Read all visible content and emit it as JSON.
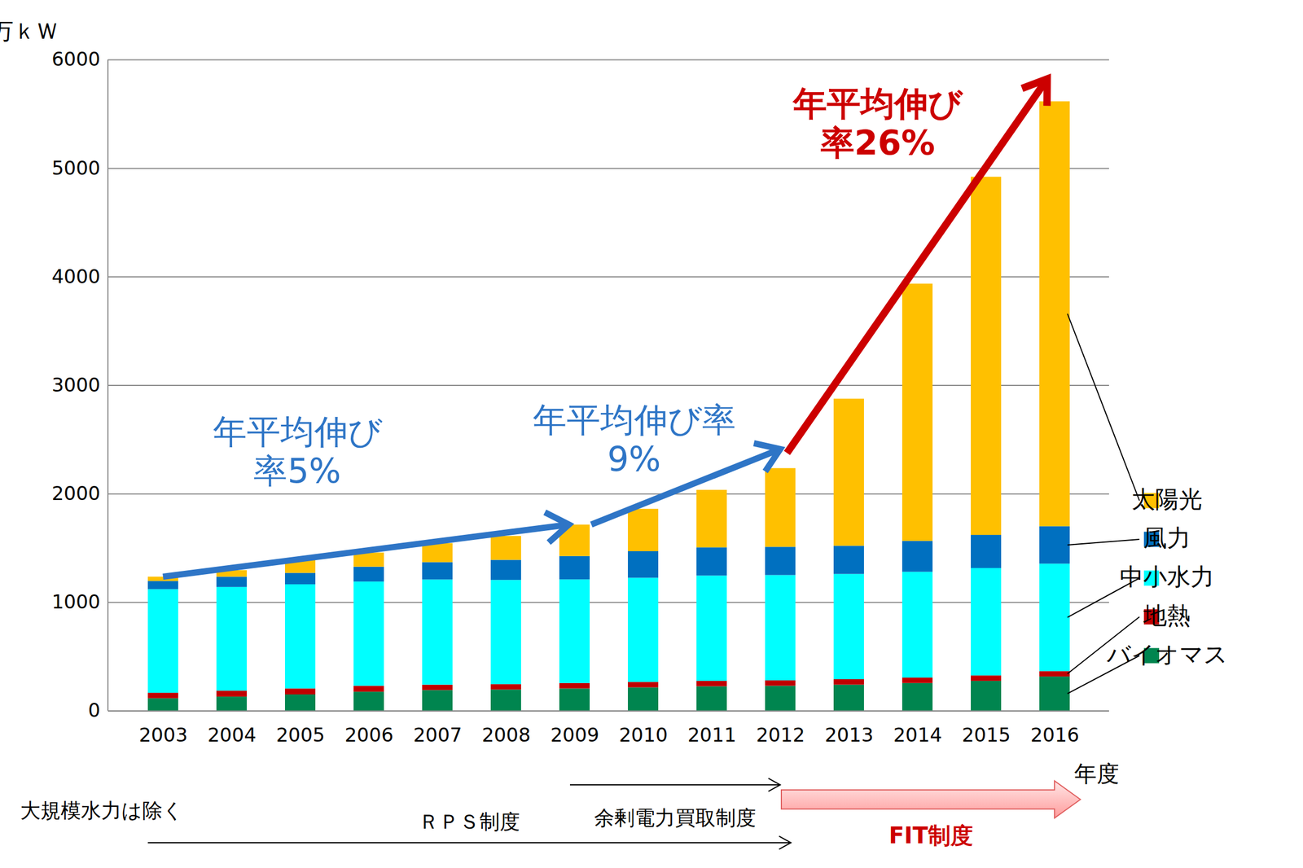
{
  "chart_data": {
    "type": "bar",
    "stacked": true,
    "categories": [
      "2003",
      "2004",
      "2005",
      "2006",
      "2007",
      "2008",
      "2009",
      "2010",
      "2011",
      "2012",
      "2013",
      "2014",
      "2015",
      "2016"
    ],
    "series": [
      {
        "name": "バイオマス",
        "color": "#00854F",
        "values": [
          115,
          130,
          150,
          175,
          190,
          195,
          205,
          215,
          225,
          230,
          240,
          255,
          275,
          315
        ]
      },
      {
        "name": "地熱",
        "color": "#C00000",
        "values": [
          50,
          55,
          55,
          55,
          50,
          50,
          50,
          50,
          50,
          50,
          50,
          50,
          50,
          50
        ]
      },
      {
        "name": "中小水力",
        "color": "#00FFFF",
        "values": [
          955,
          955,
          960,
          960,
          969,
          960,
          955,
          960,
          970,
          970,
          970,
          975,
          990,
          990
        ]
      },
      {
        "name": "風力",
        "color": "#0070C0",
        "values": [
          75,
          95,
          105,
          137,
          160,
          185,
          215,
          245,
          260,
          260,
          260,
          285,
          305,
          345
        ]
      },
      {
        "name": "太陽光",
        "color": "#FFC000",
        "values": [
          40,
          60,
          125,
          130,
          175,
          220,
          290,
          390,
          530,
          725,
          1355,
          2370,
          3300,
          3915
        ]
      }
    ],
    "ylim": [
      0,
      6000
    ],
    "yticks": [
      0,
      1000,
      2000,
      3000,
      4000,
      5000,
      6000
    ],
    "grid": true,
    "legend": "right",
    "ylabel": "万ｋＷ",
    "xlabel": "年度",
    "annotations": [
      {
        "text": "年平均伸び\n率5%",
        "from": "2003",
        "to": "2009",
        "color": "#2E75C6"
      },
      {
        "text": "年平均伸び率\n9%",
        "from": "2009",
        "to": "2012",
        "color": "#2E75C6"
      },
      {
        "text": "年平均伸び\n率26%",
        "from": "2012",
        "to": "2016",
        "color": "#CC0000"
      }
    ],
    "periods": [
      {
        "text": "ＲＰＳ制度",
        "from": "2003",
        "to": "2012"
      },
      {
        "text": "余剰電力買取制度",
        "from": "2009",
        "to": "2012"
      },
      {
        "text": "FIT制度",
        "from": "2012",
        "to": "2016",
        "color": "#CC0000"
      }
    ],
    "note": "※　大規模水力は除く"
  }
}
